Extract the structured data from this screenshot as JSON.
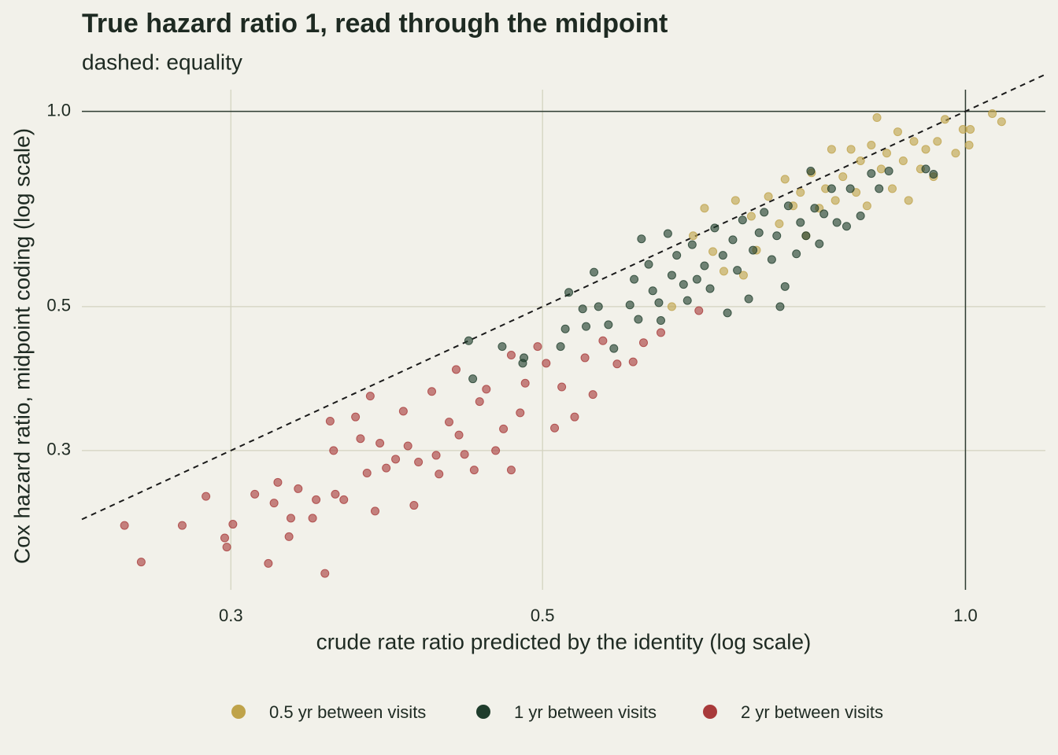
{
  "chart_data": {
    "type": "scatter",
    "title": "True hazard ratio 1, read through the midpoint",
    "subtitle": "dashed: equality",
    "x_label": "crude rate ratio predicted by the identity (log scale)",
    "y_label": "Cox hazard ratio, midpoint coding (log scale)",
    "xscale": "log",
    "yscale": "log",
    "xlim": [
      0.235,
      1.14
    ],
    "ylim": [
      0.183,
      1.08
    ],
    "xticks": [
      0.3,
      0.5,
      {
        "value": 1,
        "label": "1.0"
      }
    ],
    "yticks": [
      0.3,
      0.5,
      {
        "value": 1,
        "label": "1.0"
      }
    ],
    "hline": 1,
    "vline": 1,
    "grid": true,
    "legend": "bottom",
    "series": [
      {
        "name": "0.5 yr between visits",
        "color": "#bfa34a",
        "x": [
          0.618,
          0.64,
          0.652,
          0.661,
          0.673,
          0.686,
          0.695,
          0.704,
          0.71,
          0.724,
          0.737,
          0.744,
          0.754,
          0.763,
          0.77,
          0.777,
          0.787,
          0.795,
          0.803,
          0.808,
          0.818,
          0.829,
          0.836,
          0.842,
          0.851,
          0.857,
          0.865,
          0.871,
          0.879,
          0.887,
          0.895,
          0.903,
          0.911,
          0.919,
          0.929,
          0.937,
          0.949,
          0.955,
          0.967,
          0.984,
          0.996,
          1.006,
          1.008,
          1.045,
          1.061
        ],
        "y": [
          0.5,
          0.643,
          0.709,
          0.608,
          0.567,
          0.729,
          0.559,
          0.689,
          0.611,
          0.739,
          0.671,
          0.786,
          0.715,
          0.75,
          0.643,
          0.804,
          0.709,
          0.76,
          0.874,
          0.729,
          0.793,
          0.874,
          0.75,
          0.839,
          0.715,
          0.887,
          0.978,
          0.815,
          0.862,
          0.76,
          0.93,
          0.839,
          0.729,
          0.899,
          0.815,
          0.874,
          0.793,
          0.899,
          0.972,
          0.862,
          0.938,
          0.887,
          0.938,
          0.992,
          0.964
        ]
      },
      {
        "name": "1 yr between visits",
        "color": "#1f3d2c",
        "x": [
          0.443,
          0.446,
          0.468,
          0.485,
          0.484,
          0.515,
          0.519,
          0.522,
          0.534,
          0.537,
          0.544,
          0.548,
          0.557,
          0.562,
          0.577,
          0.581,
          0.585,
          0.588,
          0.595,
          0.599,
          0.605,
          0.607,
          0.614,
          0.618,
          0.623,
          0.63,
          0.634,
          0.639,
          0.644,
          0.652,
          0.658,
          0.663,
          0.672,
          0.677,
          0.683,
          0.688,
          0.694,
          0.701,
          0.706,
          0.713,
          0.719,
          0.728,
          0.734,
          0.738,
          0.744,
          0.748,
          0.758,
          0.763,
          0.77,
          0.776,
          0.781,
          0.787,
          0.793,
          0.803,
          0.81,
          0.823,
          0.828,
          0.842,
          0.857,
          0.868,
          0.882,
          0.937,
          0.949
        ],
        "y": [
          0.443,
          0.387,
          0.434,
          0.417,
          0.409,
          0.434,
          0.462,
          0.526,
          0.496,
          0.466,
          0.565,
          0.5,
          0.469,
          0.431,
          0.503,
          0.551,
          0.478,
          0.636,
          0.581,
          0.529,
          0.507,
          0.476,
          0.648,
          0.559,
          0.6,
          0.541,
          0.511,
          0.623,
          0.551,
          0.578,
          0.533,
          0.661,
          0.6,
          0.489,
          0.634,
          0.569,
          0.68,
          0.514,
          0.611,
          0.65,
          0.699,
          0.591,
          0.643,
          0.5,
          0.537,
          0.715,
          0.603,
          0.674,
          0.643,
          0.809,
          0.709,
          0.625,
          0.695,
          0.76,
          0.674,
          0.665,
          0.76,
          0.69,
          0.802,
          0.76,
          0.809,
          0.815,
          0.8
        ]
      },
      {
        "name": "2 yr between visits",
        "color": "#a83a3a",
        "x": [
          0.252,
          0.259,
          0.277,
          0.288,
          0.297,
          0.298,
          0.301,
          0.312,
          0.319,
          0.322,
          0.324,
          0.33,
          0.331,
          0.335,
          0.343,
          0.345,
          0.35,
          0.353,
          0.355,
          0.356,
          0.361,
          0.368,
          0.371,
          0.375,
          0.377,
          0.38,
          0.383,
          0.387,
          0.393,
          0.398,
          0.401,
          0.405,
          0.408,
          0.417,
          0.42,
          0.422,
          0.429,
          0.434,
          0.436,
          0.44,
          0.447,
          0.451,
          0.456,
          0.463,
          0.469,
          0.475,
          0.475,
          0.482,
          0.486,
          0.496,
          0.503,
          0.51,
          0.516,
          0.527,
          0.536,
          0.543,
          0.552,
          0.565,
          0.58,
          0.59,
          0.607,
          0.646
        ],
        "y": [
          0.23,
          0.202,
          0.23,
          0.255,
          0.22,
          0.213,
          0.231,
          0.257,
          0.201,
          0.249,
          0.268,
          0.221,
          0.236,
          0.262,
          0.236,
          0.252,
          0.194,
          0.333,
          0.3,
          0.257,
          0.252,
          0.338,
          0.313,
          0.277,
          0.364,
          0.242,
          0.308,
          0.282,
          0.291,
          0.345,
          0.305,
          0.247,
          0.288,
          0.37,
          0.295,
          0.276,
          0.332,
          0.4,
          0.317,
          0.296,
          0.28,
          0.357,
          0.373,
          0.3,
          0.324,
          0.28,
          0.421,
          0.343,
          0.381,
          0.434,
          0.409,
          0.325,
          0.376,
          0.338,
          0.417,
          0.366,
          0.443,
          0.408,
          0.411,
          0.44,
          0.456,
          0.493
        ]
      }
    ]
  }
}
